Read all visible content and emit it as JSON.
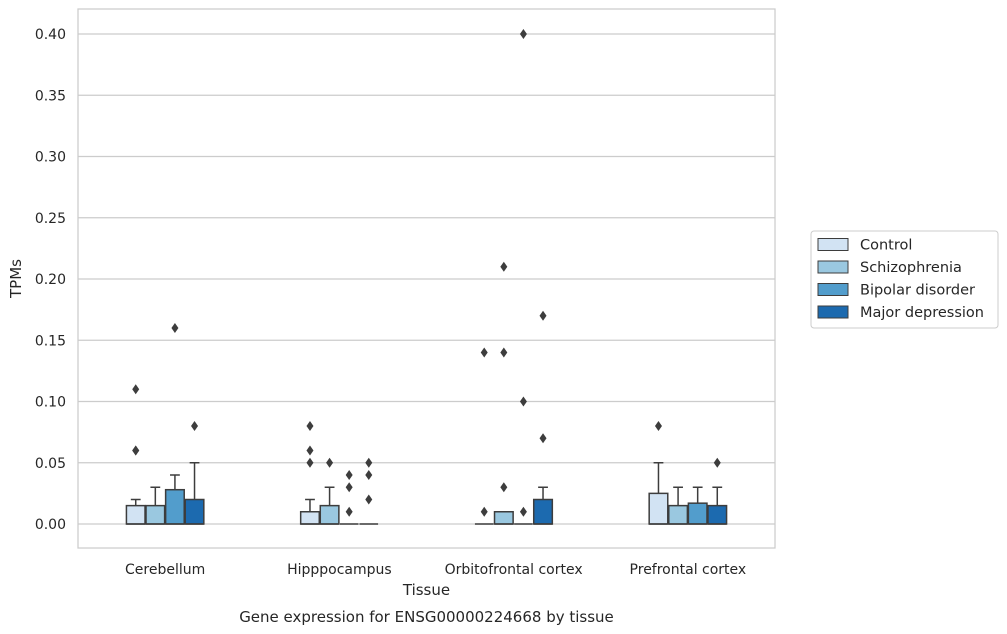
{
  "chart_data": {
    "type": "box",
    "title": "Gene expression for ENSG00000224668 by tissue",
    "xlabel": "Tissue",
    "ylabel": "TPMs",
    "ylim": [
      -0.02,
      0.42
    ],
    "yticks": [
      "0.00",
      "0.05",
      "0.10",
      "0.15",
      "0.20",
      "0.25",
      "0.30",
      "0.35",
      "0.40"
    ],
    "grid": true,
    "legend_position": "right",
    "categories": [
      "Cerebellum",
      "Hipppocampus",
      "Orbitofrontal cortex",
      "Prefrontal cortex"
    ],
    "series": [
      {
        "name": "Control",
        "color": "#d2e3f3",
        "boxes": [
          {
            "q1": 0.0,
            "median": 0.0,
            "q3": 0.015,
            "whisker_low": 0.0,
            "whisker_high": 0.02,
            "outliers": [
              0.06,
              0.06,
              0.11
            ]
          },
          {
            "q1": 0.0,
            "median": 0.0,
            "q3": 0.01,
            "whisker_low": 0.0,
            "whisker_high": 0.02,
            "outliers": [
              0.05,
              0.06,
              0.08
            ]
          },
          {
            "q1": 0.0,
            "median": 0.0,
            "q3": 0.0,
            "whisker_low": 0.0,
            "whisker_high": 0.0,
            "outliers": [
              0.01,
              0.14
            ]
          },
          {
            "q1": 0.0,
            "median": 0.0,
            "q3": 0.025,
            "whisker_low": 0.0,
            "whisker_high": 0.05,
            "outliers": [
              0.08
            ]
          }
        ]
      },
      {
        "name": "Schizophrenia",
        "color": "#9ac8e0",
        "boxes": [
          {
            "q1": 0.0,
            "median": 0.0,
            "q3": 0.015,
            "whisker_low": 0.0,
            "whisker_high": 0.03,
            "outliers": []
          },
          {
            "q1": 0.0,
            "median": 0.0,
            "q3": 0.015,
            "whisker_low": 0.0,
            "whisker_high": 0.03,
            "outliers": [
              0.05
            ]
          },
          {
            "q1": 0.0,
            "median": 0.0,
            "q3": 0.01,
            "whisker_low": 0.0,
            "whisker_high": 0.01,
            "outliers": [
              0.03,
              0.14,
              0.21
            ]
          },
          {
            "q1": 0.0,
            "median": 0.0,
            "q3": 0.015,
            "whisker_low": 0.0,
            "whisker_high": 0.03,
            "outliers": []
          }
        ]
      },
      {
        "name": "Bipolar disorder",
        "color": "#529dcc",
        "boxes": [
          {
            "q1": 0.0,
            "median": 0.0,
            "q3": 0.028,
            "whisker_low": 0.0,
            "whisker_high": 0.04,
            "outliers": [
              0.16
            ]
          },
          {
            "q1": 0.0,
            "median": 0.0,
            "q3": 0.0,
            "whisker_low": 0.0,
            "whisker_high": 0.0,
            "outliers": [
              0.01,
              0.03,
              0.04
            ]
          },
          {
            "q1": 0.0,
            "median": 0.0,
            "q3": 0.0,
            "whisker_low": 0.0,
            "whisker_high": 0.0,
            "outliers": [
              0.01,
              0.1,
              0.4
            ]
          },
          {
            "q1": 0.0,
            "median": 0.0,
            "q3": 0.017,
            "whisker_low": 0.0,
            "whisker_high": 0.03,
            "outliers": []
          }
        ]
      },
      {
        "name": "Major depression",
        "color": "#1c6aaf",
        "boxes": [
          {
            "q1": 0.0,
            "median": 0.0,
            "q3": 0.02,
            "whisker_low": 0.0,
            "whisker_high": 0.05,
            "outliers": [
              0.08
            ]
          },
          {
            "q1": 0.0,
            "median": 0.0,
            "q3": 0.0,
            "whisker_low": 0.0,
            "whisker_high": 0.0,
            "outliers": [
              0.02,
              0.04,
              0.05
            ]
          },
          {
            "q1": 0.0,
            "median": 0.0,
            "q3": 0.02,
            "whisker_low": 0.0,
            "whisker_high": 0.03,
            "outliers": [
              0.07,
              0.17
            ]
          },
          {
            "q1": 0.0,
            "median": 0.0,
            "q3": 0.015,
            "whisker_low": 0.0,
            "whisker_high": 0.03,
            "outliers": [
              0.05
            ]
          }
        ]
      }
    ]
  }
}
